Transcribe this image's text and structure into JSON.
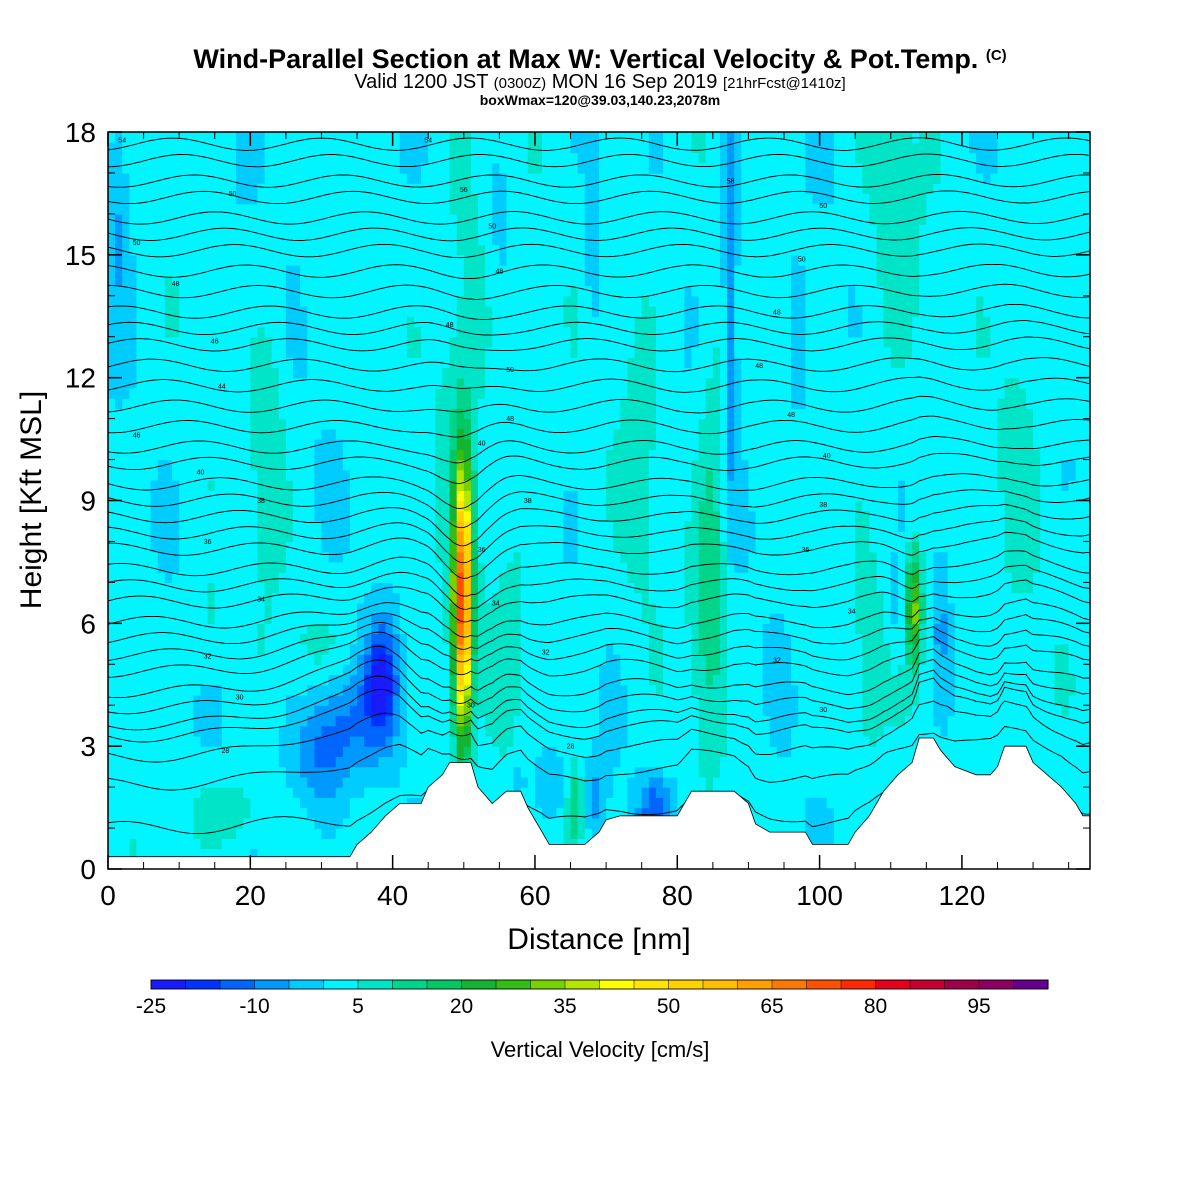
{
  "header": {
    "title": "Wind-Parallel Section at Max W: Vertical Velocity & Pot.Temp.",
    "title_tag": "(C)",
    "valid_prefix": "Valid 1200 JST",
    "valid_utc": "(0300Z)",
    "valid_date": "MON 16 Sep 2019",
    "forecast": "[21hrFcst@1410z]",
    "box_info": "boxWmax=120@39.03,140.23,2078m"
  },
  "chart_data": {
    "type": "heatmap",
    "xlabel": "Distance [nm]",
    "ylabel": "Height [Kft MSL]",
    "xlim": [
      0,
      138
    ],
    "ylim": [
      0,
      18
    ],
    "x_ticks": [
      0,
      20,
      40,
      60,
      80,
      100,
      120
    ],
    "y_ticks": [
      0,
      3,
      6,
      9,
      12,
      15,
      18
    ],
    "colorbar": {
      "label": "Vertical Velocity [cm/s]",
      "bounds": [
        -25,
        105
      ],
      "step": 5,
      "tick_labels": [
        "-25",
        "-10",
        "5",
        "20",
        "35",
        "50",
        "65",
        "80",
        "95"
      ],
      "tick_values": [
        -25,
        -10,
        5,
        20,
        35,
        50,
        65,
        80,
        95
      ],
      "colors": [
        "#1a1aff",
        "#0033ff",
        "#0066ff",
        "#0099ff",
        "#00ccff",
        "#00f5ff",
        "#00e5c8",
        "#00d58c",
        "#00c864",
        "#14b432",
        "#32be14",
        "#78d200",
        "#b4e600",
        "#ffff00",
        "#ffe600",
        "#ffd200",
        "#ffbe00",
        "#ffa000",
        "#ff7800",
        "#ff5000",
        "#ff2800",
        "#e6001e",
        "#c80032",
        "#a0004b",
        "#8c0064",
        "#64008c"
      ]
    },
    "background_value": 2,
    "updrafts": [
      {
        "x": 49.8,
        "z": 6.5,
        "sx": 0.9,
        "sz": 2.3,
        "w": 72
      },
      {
        "x": 113.3,
        "z": 6.4,
        "sx": 0.8,
        "sz": 1.0,
        "w": 30
      },
      {
        "x": 84.5,
        "z": 6.5,
        "sx": 1.7,
        "sz": 2.2,
        "w": 12
      },
      {
        "x": 65.5,
        "z": 1.5,
        "sx": 0.9,
        "sz": 0.8,
        "w": 14
      },
      {
        "x": 50.0,
        "z": 13.0,
        "sx": 3.0,
        "sz": 4.0,
        "w": 6
      },
      {
        "x": 22.5,
        "z": 10.5,
        "sx": 1.8,
        "sz": 2.2,
        "w": 7
      },
      {
        "x": 17.0,
        "z": 1.4,
        "sx": 3.5,
        "sz": 0.6,
        "w": 8
      },
      {
        "x": 14.0,
        "z": 6.0,
        "sx": 1.2,
        "sz": 1.0,
        "w": 5
      },
      {
        "x": 30.0,
        "z": 5.2,
        "sx": 4.0,
        "sz": 0.8,
        "w": 5
      },
      {
        "x": 75.0,
        "z": 11.0,
        "sx": 2.0,
        "sz": 3.0,
        "w": 5
      },
      {
        "x": 85.0,
        "z": 11.0,
        "sx": 1.5,
        "sz": 2.5,
        "w": 5
      },
      {
        "x": 110.0,
        "z": 16.0,
        "sx": 3.0,
        "sz": 4.0,
        "w": 5
      },
      {
        "x": 107.0,
        "z": 5.0,
        "sx": 1.3,
        "sz": 1.6,
        "w": 6
      },
      {
        "x": 57.0,
        "z": 6.5,
        "sx": 2.0,
        "sz": 2.5,
        "w": 4
      },
      {
        "x": 128.0,
        "z": 10.0,
        "sx": 2.0,
        "sz": 3.0,
        "w": 4
      }
    ],
    "downdrafts": [
      {
        "x": 38.5,
        "z": 4.6,
        "sx": 1.6,
        "sz": 1.0,
        "w": -22
      },
      {
        "x": 33.0,
        "z": 3.8,
        "sx": 4.0,
        "sz": 1.0,
        "w": -12
      },
      {
        "x": 30.0,
        "z": 2.5,
        "sx": 3.0,
        "sz": 0.9,
        "w": -10
      },
      {
        "x": 77.0,
        "z": 1.5,
        "sx": 1.8,
        "sz": 0.5,
        "w": -15
      },
      {
        "x": 87.5,
        "z": 14.5,
        "sx": 0.7,
        "sz": 4.0,
        "w": -13
      },
      {
        "x": 1.5,
        "z": 16.0,
        "sx": 1.2,
        "sz": 2.0,
        "w": -8
      },
      {
        "x": 62.0,
        "z": 2.0,
        "sx": 2.0,
        "sz": 0.6,
        "w": -8
      },
      {
        "x": 68.5,
        "z": 1.8,
        "sx": 1.0,
        "sz": 0.6,
        "w": -8
      },
      {
        "x": 111.0,
        "z": 6.5,
        "sx": 0.5,
        "sz": 0.8,
        "w": -7
      },
      {
        "x": 117.0,
        "z": 6.0,
        "sx": 0.6,
        "sz": 1.3,
        "w": -7
      },
      {
        "x": 57.5,
        "z": 2.0,
        "sx": 0.8,
        "sz": 0.5,
        "w": -6
      },
      {
        "x": 68.0,
        "z": 15.0,
        "sx": 0.8,
        "sz": 2.0,
        "w": -5
      },
      {
        "x": 55.0,
        "z": 15.5,
        "sx": 0.8,
        "sz": 1.5,
        "w": -5
      },
      {
        "x": 97.0,
        "z": 12.5,
        "sx": 0.8,
        "sz": 2.0,
        "w": -5
      }
    ],
    "terrain": [
      [
        0,
        0.3
      ],
      [
        34,
        0.3
      ],
      [
        35,
        0.6
      ],
      [
        37,
        0.9
      ],
      [
        39,
        1.3
      ],
      [
        41,
        1.6
      ],
      [
        44,
        1.6
      ],
      [
        45,
        2.0
      ],
      [
        47,
        2.3
      ],
      [
        48,
        2.6
      ],
      [
        51,
        2.6
      ],
      [
        52,
        2.0
      ],
      [
        54,
        1.6
      ],
      [
        56,
        1.9
      ],
      [
        58,
        1.9
      ],
      [
        59,
        1.5
      ],
      [
        60,
        1.2
      ],
      [
        61,
        0.9
      ],
      [
        62,
        0.6
      ],
      [
        67,
        0.6
      ],
      [
        69,
        0.9
      ],
      [
        70,
        1.2
      ],
      [
        72,
        1.3
      ],
      [
        80,
        1.3
      ],
      [
        82,
        1.9
      ],
      [
        88,
        1.9
      ],
      [
        90,
        1.6
      ],
      [
        91,
        1.1
      ],
      [
        93,
        0.9
      ],
      [
        98,
        0.9
      ],
      [
        99,
        0.6
      ],
      [
        104,
        0.6
      ],
      [
        105,
        0.9
      ],
      [
        107,
        1.3
      ],
      [
        108,
        1.6
      ],
      [
        109,
        1.9
      ],
      [
        111,
        2.3
      ],
      [
        113,
        2.6
      ],
      [
        114,
        3.2
      ],
      [
        116,
        3.2
      ],
      [
        117,
        2.9
      ],
      [
        119,
        2.5
      ],
      [
        122,
        2.3
      ],
      [
        124,
        2.3
      ],
      [
        125,
        2.5
      ],
      [
        126,
        3.0
      ],
      [
        129,
        3.0
      ],
      [
        130,
        2.6
      ],
      [
        132,
        2.3
      ],
      [
        134,
        2.0
      ],
      [
        136,
        1.6
      ],
      [
        137,
        1.3
      ],
      [
        138,
        1.3
      ]
    ],
    "isentrope_levels": [
      0.9,
      2.0,
      2.7,
      3.2,
      3.5,
      3.9,
      4.3,
      4.8,
      5.2,
      5.6,
      6.0,
      6.5,
      6.9,
      7.3,
      7.8,
      8.2,
      8.6,
      9.0,
      9.4,
      9.9,
      10.3,
      10.8,
      11.3,
      11.8,
      12.3,
      12.8,
      13.2,
      13.6,
      14.1,
      14.6,
      15.1,
      15.5,
      15.9,
      16.4,
      16.8,
      17.3,
      17.7
    ],
    "isentrope_labels": [
      {
        "x": 2,
        "z": 17.8,
        "text": "54"
      },
      {
        "x": 45,
        "z": 17.8,
        "text": "54"
      },
      {
        "x": 17.5,
        "z": 16.5,
        "text": "50"
      },
      {
        "x": 50,
        "z": 16.6,
        "text": "56"
      },
      {
        "x": 87.5,
        "z": 16.8,
        "text": "58"
      },
      {
        "x": 100.5,
        "z": 16.2,
        "text": "50"
      },
      {
        "x": 4,
        "z": 15.3,
        "text": "50"
      },
      {
        "x": 54,
        "z": 15.7,
        "text": "50"
      },
      {
        "x": 97.5,
        "z": 14.9,
        "text": "50"
      },
      {
        "x": 9.5,
        "z": 14.3,
        "text": "48"
      },
      {
        "x": 55,
        "z": 14.6,
        "text": "48"
      },
      {
        "x": 48,
        "z": 13.3,
        "text": "48"
      },
      {
        "x": 94,
        "z": 13.6,
        "text": "48"
      },
      {
        "x": 15,
        "z": 12.9,
        "text": "46"
      },
      {
        "x": 56.5,
        "z": 12.2,
        "text": "50"
      },
      {
        "x": 91.5,
        "z": 12.3,
        "text": "48"
      },
      {
        "x": 16,
        "z": 11.8,
        "text": "44"
      },
      {
        "x": 56.5,
        "z": 11.0,
        "text": "48"
      },
      {
        "x": 96,
        "z": 11.1,
        "text": "48"
      },
      {
        "x": 4,
        "z": 10.6,
        "text": "46"
      },
      {
        "x": 52.5,
        "z": 10.4,
        "text": "40"
      },
      {
        "x": 101,
        "z": 10.1,
        "text": "40"
      },
      {
        "x": 13,
        "z": 9.7,
        "text": "40"
      },
      {
        "x": 21.5,
        "z": 9.0,
        "text": "38"
      },
      {
        "x": 59,
        "z": 9.0,
        "text": "38"
      },
      {
        "x": 100.5,
        "z": 8.9,
        "text": "38"
      },
      {
        "x": 14,
        "z": 8.0,
        "text": "36"
      },
      {
        "x": 52.5,
        "z": 7.8,
        "text": "36"
      },
      {
        "x": 98,
        "z": 7.8,
        "text": "36"
      },
      {
        "x": 21.5,
        "z": 6.6,
        "text": "34"
      },
      {
        "x": 54.5,
        "z": 6.5,
        "text": "34"
      },
      {
        "x": 104.5,
        "z": 6.3,
        "text": "34"
      },
      {
        "x": 14,
        "z": 5.2,
        "text": "32"
      },
      {
        "x": 61.5,
        "z": 5.3,
        "text": "32"
      },
      {
        "x": 94,
        "z": 5.1,
        "text": "32"
      },
      {
        "x": 18.5,
        "z": 4.2,
        "text": "30"
      },
      {
        "x": 51,
        "z": 4.0,
        "text": "30"
      },
      {
        "x": 100.5,
        "z": 3.9,
        "text": "30"
      },
      {
        "x": 16.5,
        "z": 2.9,
        "text": "28"
      },
      {
        "x": 65,
        "z": 3.0,
        "text": "28"
      }
    ]
  }
}
